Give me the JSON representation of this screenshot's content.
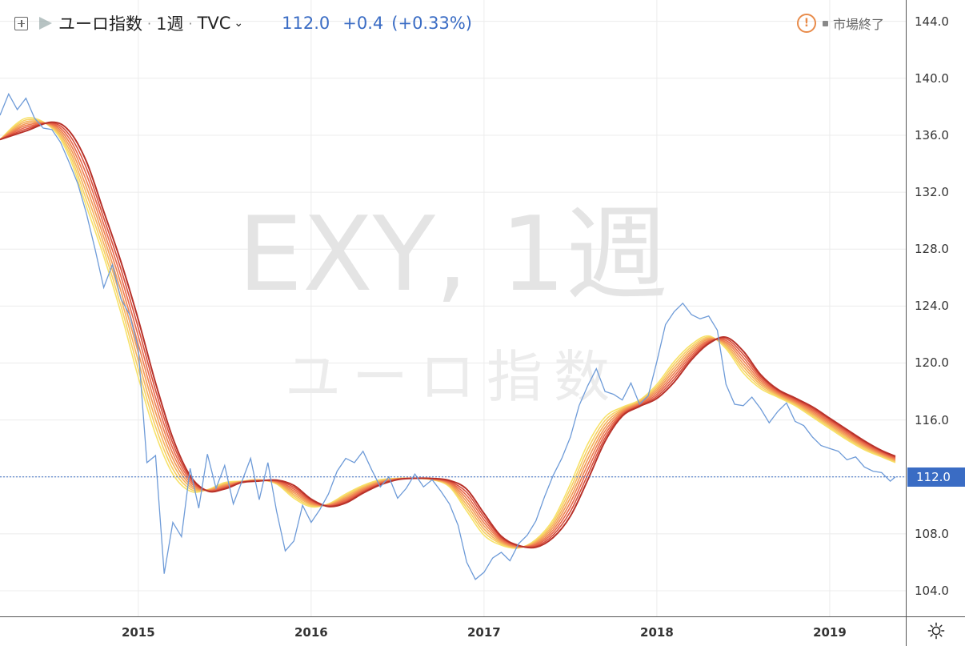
{
  "header": {
    "symbol_name": "ユーロ指数",
    "interval": "1週",
    "source": "TVC",
    "price": "112.0",
    "change": "+0.4",
    "change_pct": "(+0.33%)",
    "market_status": "市場終了"
  },
  "watermark": {
    "line1": "EXY, 1週",
    "line2": "ユーロ指数"
  },
  "colors": {
    "price_line": "#6e9bd8",
    "accent": "#3a6cc4",
    "ribbon": [
      "#f7e26a",
      "#f7cf62",
      "#f5b25c",
      "#f29a56",
      "#ee8050",
      "#e8674a",
      "#d94e3a",
      "#b8322a"
    ]
  },
  "icons": {
    "add": "plus-square-icon",
    "flag": "flag-icon",
    "chevron": "chevron-down-icon",
    "warning": "warning-circle-icon",
    "settings": "gear-icon"
  },
  "chart_data": {
    "type": "line",
    "title": "",
    "xlabel": "",
    "ylabel": "",
    "ylim": [
      102.2,
      145.5
    ],
    "xlim": [
      2014.2,
      2019.44
    ],
    "x_ticks": [
      "2015",
      "2016",
      "2017",
      "2018",
      "2019"
    ],
    "y_ticks": [
      "104.0",
      "108.0",
      "112.0",
      "116.0",
      "120.0",
      "124.0",
      "128.0",
      "132.0",
      "136.0",
      "140.0",
      "144.0"
    ],
    "last_price_label": "112.0",
    "grid": true,
    "series": [
      {
        "role": "price",
        "points": [
          [
            2014.2,
            137.4
          ],
          [
            2014.25,
            138.9
          ],
          [
            2014.3,
            137.8
          ],
          [
            2014.35,
            138.6
          ],
          [
            2014.4,
            137.2
          ],
          [
            2014.45,
            136.5
          ],
          [
            2014.5,
            136.4
          ],
          [
            2014.55,
            135.5
          ],
          [
            2014.6,
            134.1
          ],
          [
            2014.65,
            132.6
          ],
          [
            2014.7,
            130.5
          ],
          [
            2014.75,
            128.0
          ],
          [
            2014.8,
            125.3
          ],
          [
            2014.85,
            126.9
          ],
          [
            2014.9,
            124.5
          ],
          [
            2014.95,
            123.4
          ],
          [
            2015.0,
            121.0
          ],
          [
            2015.05,
            113.0
          ],
          [
            2015.1,
            113.5
          ],
          [
            2015.15,
            105.2
          ],
          [
            2015.2,
            108.8
          ],
          [
            2015.25,
            107.8
          ],
          [
            2015.3,
            112.6
          ],
          [
            2015.35,
            109.8
          ],
          [
            2015.4,
            113.6
          ],
          [
            2015.45,
            111.2
          ],
          [
            2015.5,
            112.8
          ],
          [
            2015.55,
            110.1
          ],
          [
            2015.6,
            111.7
          ],
          [
            2015.65,
            113.3
          ],
          [
            2015.7,
            110.4
          ],
          [
            2015.75,
            113.0
          ],
          [
            2015.8,
            109.6
          ],
          [
            2015.85,
            106.8
          ],
          [
            2015.9,
            107.5
          ],
          [
            2015.95,
            110.0
          ],
          [
            2016.0,
            108.8
          ],
          [
            2016.05,
            109.7
          ],
          [
            2016.1,
            110.8
          ],
          [
            2016.15,
            112.4
          ],
          [
            2016.2,
            113.3
          ],
          [
            2016.25,
            113.0
          ],
          [
            2016.3,
            113.8
          ],
          [
            2016.35,
            112.5
          ],
          [
            2016.4,
            111.3
          ],
          [
            2016.45,
            112.0
          ],
          [
            2016.5,
            110.5
          ],
          [
            2016.55,
            111.2
          ],
          [
            2016.6,
            112.2
          ],
          [
            2016.65,
            111.3
          ],
          [
            2016.7,
            111.8
          ],
          [
            2016.75,
            111.0
          ],
          [
            2016.8,
            110.1
          ],
          [
            2016.85,
            108.6
          ],
          [
            2016.9,
            106.0
          ],
          [
            2016.95,
            104.8
          ],
          [
            2017.0,
            105.3
          ],
          [
            2017.05,
            106.3
          ],
          [
            2017.1,
            106.7
          ],
          [
            2017.15,
            106.1
          ],
          [
            2017.2,
            107.3
          ],
          [
            2017.25,
            107.9
          ],
          [
            2017.3,
            108.9
          ],
          [
            2017.35,
            110.6
          ],
          [
            2017.4,
            112.1
          ],
          [
            2017.45,
            113.3
          ],
          [
            2017.5,
            114.8
          ],
          [
            2017.55,
            117.0
          ],
          [
            2017.6,
            118.4
          ],
          [
            2017.65,
            119.6
          ],
          [
            2017.7,
            118.0
          ],
          [
            2017.75,
            117.8
          ],
          [
            2017.8,
            117.4
          ],
          [
            2017.85,
            118.6
          ],
          [
            2017.9,
            117.1
          ],
          [
            2017.95,
            117.7
          ],
          [
            2018.0,
            120.1
          ],
          [
            2018.05,
            122.7
          ],
          [
            2018.1,
            123.6
          ],
          [
            2018.15,
            124.2
          ],
          [
            2018.2,
            123.4
          ],
          [
            2018.25,
            123.1
          ],
          [
            2018.3,
            123.3
          ],
          [
            2018.35,
            122.3
          ],
          [
            2018.4,
            118.5
          ],
          [
            2018.45,
            117.1
          ],
          [
            2018.5,
            117.0
          ],
          [
            2018.55,
            117.6
          ],
          [
            2018.6,
            116.8
          ],
          [
            2018.65,
            115.8
          ],
          [
            2018.7,
            116.6
          ],
          [
            2018.75,
            117.2
          ],
          [
            2018.8,
            115.9
          ],
          [
            2018.85,
            115.6
          ],
          [
            2018.9,
            114.8
          ],
          [
            2018.95,
            114.2
          ],
          [
            2019.0,
            114.0
          ],
          [
            2019.05,
            113.8
          ],
          [
            2019.1,
            113.2
          ],
          [
            2019.15,
            113.4
          ],
          [
            2019.2,
            112.7
          ],
          [
            2019.25,
            112.4
          ],
          [
            2019.3,
            112.3
          ],
          [
            2019.35,
            111.7
          ],
          [
            2019.38,
            112.0
          ]
        ]
      },
      {
        "role": "ma",
        "points": [
          [
            2014.2,
            135.7
          ],
          [
            2014.35,
            137.2
          ],
          [
            2014.5,
            136.5
          ],
          [
            2014.6,
            134.5
          ],
          [
            2014.7,
            131.0
          ],
          [
            2014.8,
            127.5
          ],
          [
            2014.9,
            123.5
          ],
          [
            2015.0,
            119.0
          ],
          [
            2015.1,
            115.0
          ],
          [
            2015.2,
            112.2
          ],
          [
            2015.3,
            111.0
          ],
          [
            2015.4,
            111.1
          ],
          [
            2015.5,
            111.6
          ],
          [
            2015.6,
            111.7
          ],
          [
            2015.7,
            111.8
          ],
          [
            2015.8,
            111.5
          ],
          [
            2015.9,
            110.5
          ],
          [
            2016.0,
            109.9
          ],
          [
            2016.1,
            110.1
          ],
          [
            2016.2,
            110.8
          ],
          [
            2016.3,
            111.4
          ],
          [
            2016.4,
            111.8
          ],
          [
            2016.5,
            111.9
          ],
          [
            2016.6,
            111.9
          ],
          [
            2016.7,
            111.8
          ],
          [
            2016.8,
            111.3
          ],
          [
            2016.9,
            109.6
          ],
          [
            2017.0,
            107.9
          ],
          [
            2017.1,
            107.2
          ],
          [
            2017.2,
            107.0
          ],
          [
            2017.3,
            107.6
          ],
          [
            2017.4,
            109.0
          ],
          [
            2017.5,
            111.5
          ],
          [
            2017.6,
            114.3
          ],
          [
            2017.7,
            116.2
          ],
          [
            2017.8,
            116.9
          ],
          [
            2017.9,
            117.4
          ],
          [
            2018.0,
            118.5
          ],
          [
            2018.1,
            120.1
          ],
          [
            2018.2,
            121.3
          ],
          [
            2018.3,
            121.9
          ],
          [
            2018.4,
            121.0
          ],
          [
            2018.5,
            119.3
          ],
          [
            2018.6,
            118.2
          ],
          [
            2018.7,
            117.6
          ],
          [
            2018.8,
            117.0
          ],
          [
            2018.9,
            116.2
          ],
          [
            2019.0,
            115.4
          ],
          [
            2019.1,
            114.6
          ],
          [
            2019.2,
            113.9
          ],
          [
            2019.3,
            113.4
          ],
          [
            2019.38,
            113.0
          ]
        ]
      }
    ]
  }
}
